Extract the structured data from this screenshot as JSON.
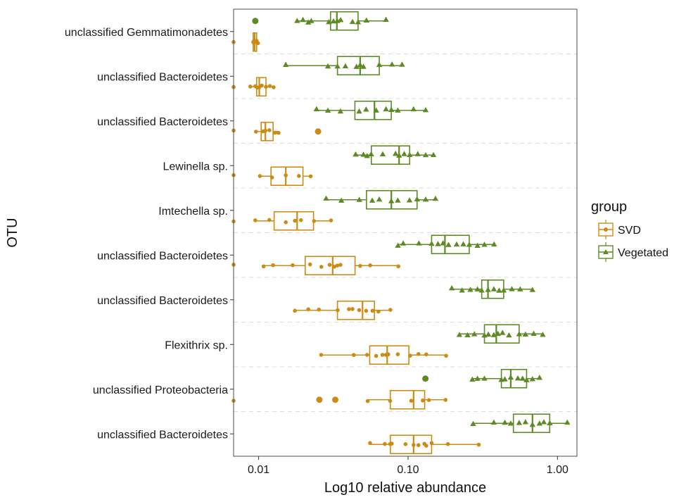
{
  "chart_data": {
    "type": "boxplot",
    "xlabel": "Log10 relative abundance",
    "ylabel": "OTU",
    "x_scale": "log10",
    "x_ticks": [
      {
        "value": 0.01,
        "label": "0.01"
      },
      {
        "value": 0.1,
        "label": "0.10"
      },
      {
        "value": 1,
        "label": "1.00"
      }
    ],
    "xlim": [
      0.0068,
      1.35
    ],
    "grid": "dashed horizontal separators between categories",
    "legend": {
      "title": "group",
      "position": "right",
      "entries": [
        {
          "name": "SVD",
          "marker": "circle",
          "color": "#cc8b14"
        },
        {
          "name": "Vegetated",
          "marker": "triangle",
          "color": "#5e8a25"
        }
      ]
    },
    "categories": [
      "unclassified Gemmatimonadetes",
      "unclassified Bacteroidetes",
      "unclassified Bacteroidetes",
      "Lewinella sp.",
      "Imtechella sp.",
      "unclassified Bacteroidetes",
      "unclassified Bacteroidetes",
      "Flexithrix sp.",
      "unclassified Proteobacteria",
      "unclassified Bacteroidetes"
    ],
    "series": [
      {
        "name": "SVD",
        "color": "#cc8b14",
        "boxes": [
          {
            "whisker_low": 0.0092,
            "q1": 0.0092,
            "median": 0.0094,
            "q3": 0.0097,
            "whisker_high": 0.0099,
            "outliers": [],
            "points": [
              0.0068,
              0.0092,
              0.0093,
              0.0094,
              0.0095,
              0.0096,
              0.0097,
              0.0099
            ]
          },
          {
            "whisker_low": 0.0088,
            "q1": 0.0097,
            "median": 0.0101,
            "q3": 0.0112,
            "whisker_high": 0.0126,
            "outliers": [],
            "points": [
              0.0068,
              0.0088,
              0.0095,
              0.0098,
              0.0101,
              0.0105,
              0.0112,
              0.0119,
              0.0126
            ]
          },
          {
            "whisker_low": 0.0096,
            "q1": 0.0104,
            "median": 0.0111,
            "q3": 0.0125,
            "whisker_high": 0.0136,
            "outliers": [
              0.025
            ],
            "points": [
              0.0068,
              0.0096,
              0.0107,
              0.0111,
              0.0118,
              0.0129,
              0.0136
            ]
          },
          {
            "whisker_low": 0.0102,
            "q1": 0.0121,
            "median": 0.0152,
            "q3": 0.0198,
            "whisker_high": 0.0223,
            "outliers": [],
            "points": [
              0.0068,
              0.0102,
              0.0123,
              0.0152,
              0.0186,
              0.0223
            ]
          },
          {
            "whisker_low": 0.0095,
            "q1": 0.0127,
            "median": 0.0181,
            "q3": 0.0233,
            "whisker_high": 0.0305,
            "outliers": [],
            "points": [
              0.0068,
              0.0095,
              0.0118,
              0.0152,
              0.0175,
              0.0192,
              0.0235,
              0.0305
            ]
          },
          {
            "whisker_low": 0.0108,
            "q1": 0.0205,
            "median": 0.0313,
            "q3": 0.0442,
            "whisker_high": 0.0862,
            "outliers": [],
            "points": [
              0.0068,
              0.0108,
              0.0125,
              0.0169,
              0.0221,
              0.0263,
              0.0299,
              0.0321,
              0.0336,
              0.0353,
              0.0478,
              0.0558,
              0.0862
            ]
          },
          {
            "whisker_low": 0.0175,
            "q1": 0.0337,
            "median": 0.0496,
            "q3": 0.0596,
            "whisker_high": 0.0762,
            "outliers": [],
            "points": [
              0.0175,
              0.0215,
              0.0253,
              0.0338,
              0.0402,
              0.0425,
              0.0471,
              0.0524,
              0.0578,
              0.0634,
              0.0762
            ]
          },
          {
            "whisker_low": 0.0262,
            "q1": 0.0554,
            "median": 0.0725,
            "q3": 0.1013,
            "whisker_high": 0.1798,
            "outliers": [],
            "points": [
              0.0262,
              0.0433,
              0.0532,
              0.0612,
              0.0674,
              0.0712,
              0.0737,
              0.0854,
              0.1032,
              0.1175,
              0.1324,
              0.1798
            ]
          },
          {
            "whisker_low": 0.0537,
            "q1": 0.0761,
            "median": 0.1089,
            "q3": 0.1292,
            "whisker_high": 0.1782,
            "outliers": [
              0.0255,
              0.0326
            ],
            "points": [
              0.0068,
              0.0537,
              0.0759,
              0.1051,
              0.1254,
              0.1379,
              0.1782
            ]
          },
          {
            "whisker_low": 0.0557,
            "q1": 0.0761,
            "median": 0.1089,
            "q3": 0.1438,
            "whisker_high": 0.2974,
            "outliers": [],
            "points": [
              0.0557,
              0.0699,
              0.0759,
              0.0778,
              0.0962,
              0.1089,
              0.1174,
              0.1287,
              0.1324,
              0.1437,
              0.1848,
              0.2974
            ]
          }
        ]
      },
      {
        "name": "Vegetated",
        "color": "#5e8a25",
        "boxes": [
          {
            "whisker_low": 0.0181,
            "q1": 0.0303,
            "median": 0.0334,
            "q3": 0.0463,
            "whisker_high": 0.0712,
            "outliers": [
              0.0095
            ],
            "points": [
              0.0181,
              0.0198,
              0.0215,
              0.0225,
              0.0295,
              0.0317,
              0.0336,
              0.0354,
              0.0425,
              0.0463,
              0.0527,
              0.0712
            ]
          },
          {
            "whisker_low": 0.0152,
            "q1": 0.0337,
            "median": 0.0478,
            "q3": 0.0642,
            "whisker_high": 0.0912,
            "outliers": [],
            "points": [
              0.0152,
              0.0291,
              0.0337,
              0.0381,
              0.0452,
              0.0478,
              0.0503,
              0.0642,
              0.0781,
              0.0912
            ]
          },
          {
            "whisker_low": 0.0244,
            "q1": 0.0441,
            "median": 0.0596,
            "q3": 0.0772,
            "whisker_high": 0.1312,
            "outliers": [],
            "points": [
              0.0244,
              0.0291,
              0.0353,
              0.0471,
              0.0524,
              0.0612,
              0.0712,
              0.0773,
              0.0854,
              0.1088,
              0.1312
            ]
          },
          {
            "whisker_low": 0.0446,
            "q1": 0.0568,
            "median": 0.0871,
            "q3": 0.1025,
            "whisker_high": 0.1479,
            "outliers": [],
            "points": [
              0.0446,
              0.0503,
              0.0532,
              0.0567,
              0.0677,
              0.0825,
              0.0871,
              0.0943,
              0.1025,
              0.1162,
              0.1312,
              0.1479
            ]
          },
          {
            "whisker_low": 0.0283,
            "q1": 0.0527,
            "median": 0.0773,
            "q3": 0.1149,
            "whisker_high": 0.1526,
            "outliers": [],
            "points": [
              0.0283,
              0.0358,
              0.0472,
              0.0576,
              0.0642,
              0.0773,
              0.0854,
              0.1023,
              0.1149,
              0.1312,
              0.1526
            ]
          },
          {
            "whisker_low": 0.0856,
            "q1": 0.1438,
            "median": 0.1766,
            "q3": 0.2568,
            "whisker_high": 0.3767,
            "outliers": [],
            "points": [
              0.0856,
              0.0928,
              0.1183,
              0.1438,
              0.1586,
              0.1715,
              0.1866,
              0.2114,
              0.2344,
              0.2568,
              0.2916,
              0.3245,
              0.3767
            ]
          },
          {
            "whisker_low": 0.1962,
            "q1": 0.3112,
            "median": 0.3429,
            "q3": 0.4365,
            "whisker_high": 0.6803,
            "outliers": [],
            "points": [
              0.1962,
              0.2298,
              0.2612,
              0.2916,
              0.3112,
              0.3429,
              0.3752,
              0.4068,
              0.4365,
              0.4956,
              0.5628,
              0.6803
            ]
          },
          {
            "whisker_low": 0.2206,
            "q1": 0.3245,
            "median": 0.3895,
            "q3": 0.5541,
            "whisker_high": 0.7973,
            "outliers": [],
            "points": [
              0.2206,
              0.2503,
              0.2778,
              0.3245,
              0.3447,
              0.3752,
              0.3995,
              0.4288,
              0.4737,
              0.5541,
              0.6108,
              0.6934,
              0.7973
            ]
          },
          {
            "whisker_low": 0.2694,
            "q1": 0.4213,
            "median": 0.4866,
            "q3": 0.6213,
            "whisker_high": 0.7584,
            "outliers": [
              0.1307
            ],
            "points": [
              0.2694,
              0.2916,
              0.3245,
              0.4213,
              0.4445,
              0.4866,
              0.5432,
              0.5842,
              0.6213,
              0.6803,
              0.7584
            ]
          },
          {
            "whisker_low": 0.2727,
            "q1": 0.5071,
            "median": 0.6803,
            "q3": 0.8874,
            "whisker_high": 1.1632,
            "outliers": [],
            "points": [
              0.2727,
              0.3751,
              0.4446,
              0.4866,
              0.5542,
              0.6108,
              0.6803,
              0.7583,
              0.8107,
              0.8874,
              1.1632
            ]
          }
        ]
      }
    ]
  }
}
